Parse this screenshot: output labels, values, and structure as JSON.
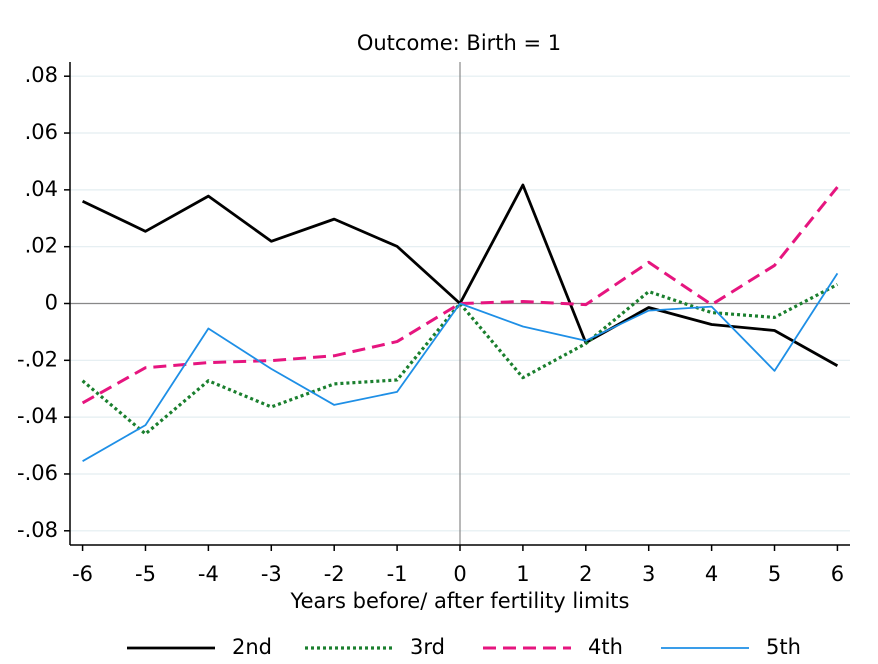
{
  "chart_data": {
    "type": "line",
    "title": "Outcome: Birth = 1",
    "x_label": "Years before/ after fertility limits",
    "x": [
      -6,
      -5,
      -4,
      -3,
      -2,
      -1,
      0,
      1,
      2,
      3,
      4,
      5,
      6
    ],
    "xlim": [
      -6.2,
      6.2
    ],
    "xticks": [
      -6,
      -5,
      -4,
      -3,
      -2,
      -1,
      0,
      1,
      2,
      3,
      4,
      5,
      6
    ],
    "ylim": [
      -0.085,
      0.085
    ],
    "yticks": [
      {
        "value": -0.08,
        "label": "-.08"
      },
      {
        "value": -0.06,
        "label": "-.06"
      },
      {
        "value": -0.04,
        "label": "-.04"
      },
      {
        "value": -0.02,
        "label": "-.02"
      },
      0,
      {
        "value": 0.02,
        "label": ".02"
      },
      {
        "value": 0.04,
        "label": ".04"
      },
      {
        "value": 0.06,
        "label": ".06"
      },
      {
        "value": 0.08,
        "label": ".08"
      }
    ],
    "grid": true,
    "reference_lines": {
      "x": 0,
      "y": 0
    },
    "legend_position": "bottom",
    "series": [
      {
        "name": "2nd",
        "color": "#000000",
        "dash": "solid",
        "values": [
          0.036,
          0.0254,
          0.0378,
          0.0219,
          0.0297,
          0.0201,
          0,
          0.0417,
          -0.0138,
          -0.0014,
          -0.0074,
          -0.0095,
          -0.0219
        ]
      },
      {
        "name": "3rd",
        "color": "#1a7f2e",
        "dash": "dotted",
        "values": [
          -0.0272,
          -0.0459,
          -0.0272,
          -0.0364,
          -0.0283,
          -0.0269,
          0,
          -0.0261,
          -0.0141,
          0.0042,
          -0.0032,
          -0.0049,
          0.0067
        ]
      },
      {
        "name": "4th",
        "color": "#e6157f",
        "dash": "dashed",
        "values": [
          -0.035,
          -0.0226,
          -0.0208,
          -0.0201,
          -0.0184,
          -0.0134,
          0,
          0.0007,
          -0.0004,
          0.0145,
          -0.0004,
          0.0134,
          0.041
        ]
      },
      {
        "name": "5th",
        "color": "#1e8fe6",
        "dash": "thin",
        "values": [
          -0.0555,
          -0.0428,
          -0.0088,
          -0.023,
          -0.0357,
          -0.0311,
          0,
          -0.0081,
          -0.0131,
          -0.0025,
          -0.0011,
          -0.0237,
          0.0106
        ]
      }
    ]
  }
}
